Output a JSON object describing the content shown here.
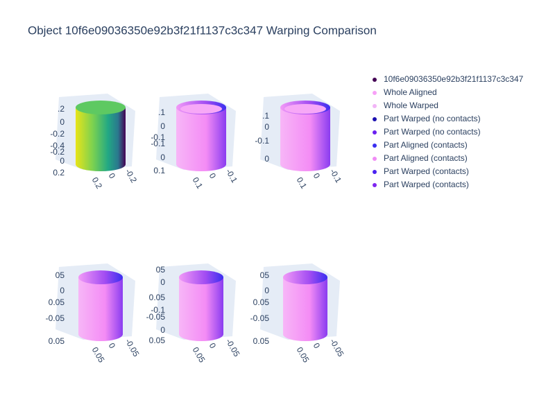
{
  "chart_data": {
    "type": "scatter3d",
    "title": "Object 10f6e09036350e92b3f21f1137c3c347 Warping Comparison",
    "series": [
      {
        "name": "10f6e09036350e92b3f21f1137c3c347",
        "color": "#440154"
      },
      {
        "name": "Whole Aligned",
        "color": "#f7a1f7"
      },
      {
        "name": "Whole Warped",
        "color": "#f2b5f7"
      },
      {
        "name": "Part Warped (no contacts)",
        "color": "#1c10b0"
      },
      {
        "name": "Part Warped (no contacts)",
        "color": "#6a20f0"
      },
      {
        "name": "Part Aligned (contacts)",
        "color": "#3a2ff0"
      },
      {
        "name": "Part Aligned (contacts)",
        "color": "#f08cf5"
      },
      {
        "name": "Part Warped (contacts)",
        "color": "#4a22f0"
      },
      {
        "name": "Part Warped (contacts)",
        "color": "#7f26f0"
      }
    ],
    "scenes": [
      {
        "yticks": [
          {
            "value": 0.2,
            "label": ".2"
          },
          0,
          -0.2,
          -0.4,
          -0.2,
          0,
          0.2
        ],
        "xticks": [
          0.2,
          0,
          -0.2
        ]
      },
      {
        "yticks": [
          {
            "value": 0.1,
            "label": ".1"
          },
          0,
          -0.1,
          -0.1,
          0,
          0.1
        ],
        "xticks": [
          0.1,
          0,
          -0.1
        ]
      },
      {
        "yticks": [
          {
            "value": 0.1,
            "label": ".1"
          },
          0,
          -0.1,
          0
        ],
        "xticks": [
          0.1,
          0,
          -0.1
        ]
      },
      {
        "yticks": [
          {
            "value": 0.05,
            "label": "05"
          },
          0,
          0.05,
          -0.05,
          0.05
        ],
        "xticks": [
          0.05,
          0,
          -0.05
        ]
      },
      {
        "yticks": [
          {
            "value": 0.05,
            "label": "05"
          },
          0,
          0.05,
          -0.1,
          -0.05,
          0,
          0.05
        ],
        "xticks": [
          0.05,
          0,
          -0.05
        ]
      },
      {
        "yticks": [
          {
            "value": 0.05,
            "label": "05"
          },
          0,
          0.05,
          -0.05,
          0.05
        ],
        "xticks": [
          0.05,
          0,
          -0.05
        ]
      }
    ]
  }
}
